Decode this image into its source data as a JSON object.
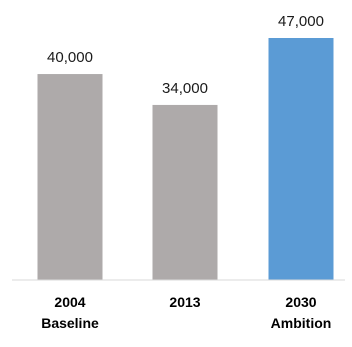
{
  "chart_data": {
    "type": "bar",
    "categories": [
      [
        "2004",
        "Baseline"
      ],
      [
        "2013"
      ],
      [
        "2030",
        "Ambition"
      ]
    ],
    "values": [
      40000,
      34000,
      47000
    ],
    "value_labels": [
      "40,000",
      "34,000",
      "47,000"
    ],
    "bar_colors": [
      "#aeaaaa",
      "#aeaaaa",
      "#5b9bd5"
    ],
    "title": "",
    "xlabel": "",
    "ylabel": "",
    "ylim": [
      0,
      47000
    ],
    "grid": false,
    "legend": "none"
  }
}
